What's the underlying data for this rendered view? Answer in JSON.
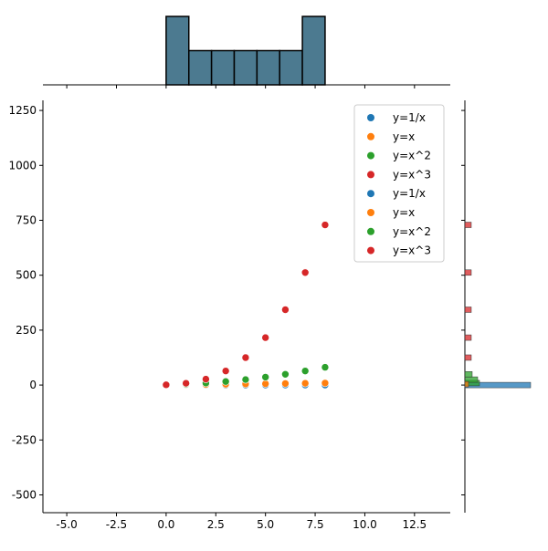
{
  "chart_data": {
    "type": "scatter",
    "x": [
      0,
      1,
      2,
      3,
      4,
      5,
      6,
      7,
      8
    ],
    "series": [
      {
        "name": "y=1/x",
        "color": "#1f77b4",
        "values": [
          1,
          0.5,
          0.333,
          0.25,
          0.2,
          0.167,
          0.143,
          0.125,
          0.111
        ]
      },
      {
        "name": "y=x",
        "color": "#ff7f0e",
        "values": [
          1,
          2,
          3,
          4,
          5,
          6,
          7,
          8,
          9
        ]
      },
      {
        "name": "y=x^2",
        "color": "#2ca02c",
        "values": [
          1,
          4,
          9,
          16,
          25,
          36,
          49,
          64,
          81
        ]
      },
      {
        "name": "y=x^3",
        "color": "#d62728",
        "values": [
          1,
          8,
          27,
          64,
          125,
          216,
          343,
          512,
          729
        ]
      }
    ],
    "legend_entries": [
      "y=1/x",
      "y=x",
      "y=x^2",
      "y=x^3",
      "y=1/x",
      "y=x",
      "y=x^2",
      "y=x^3"
    ],
    "legend_placement": "top-right",
    "xlim": [
      -6.2,
      14.3
    ],
    "ylim": [
      -581,
      1296
    ],
    "xticks": [
      "-5.0",
      "-2.5",
      "0.0",
      "2.5",
      "5.0",
      "7.5",
      "10.0",
      "12.5"
    ],
    "yticks": [
      "-500",
      "-250",
      "0",
      "250",
      "500",
      "750",
      "1000",
      "1250"
    ],
    "grid": false,
    "marginal_x_hist": {
      "color": "#4c7a90",
      "bin_range": [
        0,
        8
      ],
      "counts": [
        2,
        1,
        1,
        1,
        1,
        1,
        2
      ]
    },
    "marginal_y_hist": {
      "note_colors": "per series"
    }
  }
}
